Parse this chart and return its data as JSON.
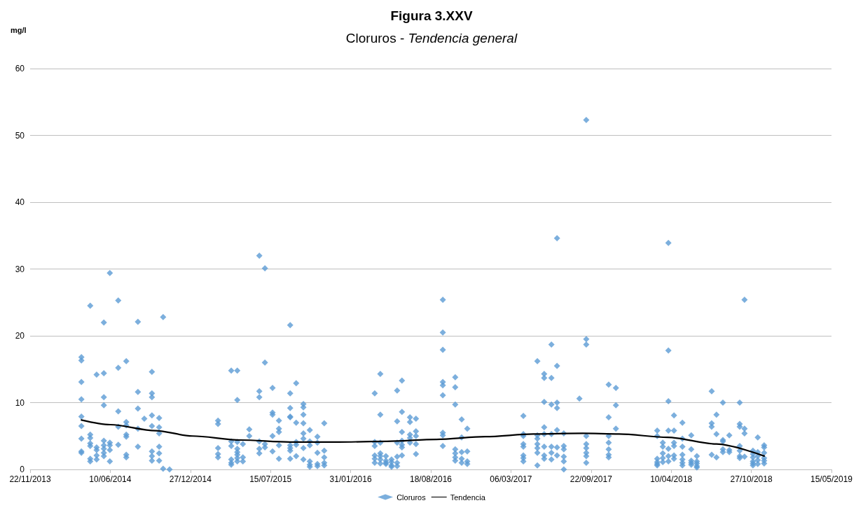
{
  "chart_data": {
    "type": "scatter",
    "title": "Figura 3.XXV",
    "subtitle": "Cloruros - Tendencia general",
    "ylabel": "mg/l",
    "xlim": [
      "2013-11-22",
      "2019-05-15"
    ],
    "xticks": [
      {
        "value": "2013-11-22",
        "label": "22/11/2013"
      },
      {
        "value": "2014-06-10",
        "label": "10/06/2014"
      },
      {
        "value": "2014-12-27",
        "label": "27/12/2014"
      },
      {
        "value": "2015-07-15",
        "label": "15/07/2015"
      },
      {
        "value": "2016-01-31",
        "label": "31/01/2016"
      },
      {
        "value": "2016-08-18",
        "label": "18/08/2016"
      },
      {
        "value": "2017-03-06",
        "label": "06/03/2017"
      },
      {
        "value": "2017-09-22",
        "label": "22/09/2017"
      },
      {
        "value": "2018-04-10",
        "label": "10/04/2018"
      },
      {
        "value": "2018-10-27",
        "label": "27/10/2018"
      },
      {
        "value": "2019-05-15",
        "label": "15/05/2019"
      }
    ],
    "ylim": [
      0,
      60
    ],
    "yticks": [
      0,
      10,
      20,
      30,
      40,
      50,
      60
    ],
    "grid": "y",
    "legend": "bottom",
    "series": [
      {
        "name": "Cloruros",
        "marker": "diamond",
        "color": "#5b9bd5",
        "x": [
          "2014-03-30",
          "2014-03-30",
          "2014-03-30",
          "2014-03-30",
          "2014-03-30",
          "2014-03-30",
          "2014-03-30",
          "2014-03-30",
          "2014-03-30",
          "2014-04-21",
          "2014-04-21",
          "2014-04-21",
          "2014-04-21",
          "2014-04-21",
          "2014-04-21",
          "2014-04-21",
          "2014-05-07",
          "2014-05-07",
          "2014-05-07",
          "2014-05-07",
          "2014-05-07",
          "2014-05-25",
          "2014-05-25",
          "2014-05-25",
          "2014-05-25",
          "2014-05-25",
          "2014-05-25",
          "2014-05-25",
          "2014-05-25",
          "2014-05-25",
          "2014-06-09",
          "2014-06-09",
          "2014-06-09",
          "2014-06-09",
          "2014-06-09",
          "2014-06-30",
          "2014-06-30",
          "2014-06-30",
          "2014-06-30",
          "2014-06-30",
          "2014-07-20",
          "2014-07-20",
          "2014-07-20",
          "2014-07-20",
          "2014-07-20",
          "2014-07-20",
          "2014-07-20",
          "2014-08-18",
          "2014-08-18",
          "2014-08-18",
          "2014-08-18",
          "2014-08-18",
          "2014-09-03",
          "2014-09-22",
          "2014-09-22",
          "2014-09-22",
          "2014-09-22",
          "2014-09-22",
          "2014-09-22",
          "2014-09-22",
          "2014-09-22",
          "2014-10-10",
          "2014-10-10",
          "2014-10-10",
          "2014-10-10",
          "2014-10-10",
          "2014-10-10",
          "2014-10-20",
          "2014-10-20",
          "2014-11-05",
          "2015-03-06",
          "2015-03-06",
          "2015-03-06",
          "2015-03-06",
          "2015-03-06",
          "2015-04-08",
          "2015-04-08",
          "2015-04-08",
          "2015-04-08",
          "2015-04-08",
          "2015-04-08",
          "2015-04-23",
          "2015-04-23",
          "2015-04-23",
          "2015-04-23",
          "2015-04-23",
          "2015-04-23",
          "2015-04-23",
          "2015-04-23",
          "2015-05-07",
          "2015-05-07",
          "2015-05-07",
          "2015-05-23",
          "2015-05-23",
          "2015-06-17",
          "2015-06-17",
          "2015-06-17",
          "2015-06-17",
          "2015-06-17",
          "2015-06-17",
          "2015-07-01",
          "2015-07-01",
          "2015-07-01",
          "2015-07-01",
          "2015-07-20",
          "2015-07-20",
          "2015-07-20",
          "2015-07-20",
          "2015-07-20",
          "2015-08-05",
          "2015-08-05",
          "2015-08-05",
          "2015-08-05",
          "2015-08-05",
          "2015-09-02",
          "2015-09-02",
          "2015-09-02",
          "2015-09-02",
          "2015-09-02",
          "2015-09-02",
          "2015-09-02",
          "2015-09-02",
          "2015-09-02",
          "2015-09-17",
          "2015-09-17",
          "2015-09-17",
          "2015-09-17",
          "2015-09-17",
          "2015-10-05",
          "2015-10-05",
          "2015-10-05",
          "2015-10-05",
          "2015-10-05",
          "2015-10-05",
          "2015-10-05",
          "2015-10-05",
          "2015-10-21",
          "2015-10-21",
          "2015-10-21",
          "2015-10-21",
          "2015-10-21",
          "2015-10-21",
          "2015-11-09",
          "2015-11-09",
          "2015-11-09",
          "2015-11-09",
          "2015-11-09",
          "2015-11-26",
          "2015-11-26",
          "2015-11-26",
          "2015-11-26",
          "2015-11-26",
          "2016-03-31",
          "2016-03-31",
          "2016-03-31",
          "2016-03-31",
          "2016-03-31",
          "2016-03-31",
          "2016-04-14",
          "2016-04-14",
          "2016-04-14",
          "2016-04-14",
          "2016-04-14",
          "2016-04-14",
          "2016-04-14",
          "2016-04-28",
          "2016-04-28",
          "2016-04-28",
          "2016-04-28",
          "2016-05-12",
          "2016-05-12",
          "2016-05-12",
          "2016-05-12",
          "2016-05-26",
          "2016-05-26",
          "2016-05-26",
          "2016-05-26",
          "2016-05-26",
          "2016-05-26",
          "2016-06-07",
          "2016-06-07",
          "2016-06-07",
          "2016-06-07",
          "2016-06-07",
          "2016-06-07",
          "2016-06-07",
          "2016-06-27",
          "2016-06-27",
          "2016-06-27",
          "2016-06-27",
          "2016-06-27",
          "2016-07-12",
          "2016-07-12",
          "2016-07-12",
          "2016-07-12",
          "2016-07-12",
          "2016-09-17",
          "2016-09-17",
          "2016-09-17",
          "2016-09-17",
          "2016-09-17",
          "2016-09-17",
          "2016-09-17",
          "2016-09-17",
          "2016-09-17",
          "2016-10-18",
          "2016-10-18",
          "2016-10-18",
          "2016-10-18",
          "2016-10-18",
          "2016-10-18",
          "2016-10-18",
          "2016-11-03",
          "2016-11-03",
          "2016-11-03",
          "2016-11-03",
          "2016-11-03",
          "2016-11-17",
          "2016-11-17",
          "2016-11-17",
          "2016-11-17",
          "2017-04-06",
          "2017-04-06",
          "2017-04-06",
          "2017-04-06",
          "2017-04-06",
          "2017-04-06",
          "2017-04-06",
          "2017-04-06",
          "2017-05-11",
          "2017-05-11",
          "2017-05-11",
          "2017-05-11",
          "2017-05-11",
          "2017-05-11",
          "2017-05-11",
          "2017-05-28",
          "2017-05-28",
          "2017-05-28",
          "2017-05-28",
          "2017-05-28",
          "2017-05-28",
          "2017-05-28",
          "2017-05-28",
          "2017-06-15",
          "2017-06-15",
          "2017-06-15",
          "2017-06-15",
          "2017-06-15",
          "2017-06-15",
          "2017-06-15",
          "2017-06-29",
          "2017-06-29",
          "2017-06-29",
          "2017-06-29",
          "2017-06-29",
          "2017-06-29",
          "2017-06-29",
          "2017-07-16",
          "2017-07-16",
          "2017-07-16",
          "2017-07-16",
          "2017-07-16",
          "2017-07-16",
          "2017-08-24",
          "2017-09-10",
          "2017-09-10",
          "2017-09-10",
          "2017-09-10",
          "2017-09-10",
          "2017-09-10",
          "2017-09-10",
          "2017-09-10",
          "2017-09-10",
          "2017-11-05",
          "2017-11-05",
          "2017-11-05",
          "2017-11-05",
          "2017-11-05",
          "2017-11-05",
          "2017-11-05",
          "2017-11-23",
          "2017-11-23",
          "2017-11-23",
          "2018-03-06",
          "2018-03-06",
          "2018-03-06",
          "2018-03-06",
          "2018-03-06",
          "2018-03-06",
          "2018-03-20",
          "2018-03-20",
          "2018-03-20",
          "2018-03-20",
          "2018-03-20",
          "2018-04-03",
          "2018-04-03",
          "2018-04-03",
          "2018-04-03",
          "2018-04-03",
          "2018-04-03",
          "2018-04-03",
          "2018-04-17",
          "2018-04-17",
          "2018-04-17",
          "2018-04-17",
          "2018-04-17",
          "2018-04-17",
          "2018-05-08",
          "2018-05-08",
          "2018-05-08",
          "2018-05-08",
          "2018-05-08",
          "2018-05-08",
          "2018-05-08",
          "2018-05-30",
          "2018-05-30",
          "2018-05-30",
          "2018-05-30",
          "2018-05-30",
          "2018-06-13",
          "2018-06-13",
          "2018-06-13",
          "2018-06-13",
          "2018-06-13",
          "2018-07-20",
          "2018-07-20",
          "2018-07-20",
          "2018-07-20",
          "2018-08-01",
          "2018-08-01",
          "2018-08-01",
          "2018-08-17",
          "2018-08-17",
          "2018-08-17",
          "2018-08-17",
          "2018-08-17",
          "2018-09-02",
          "2018-09-02",
          "2018-09-02",
          "2018-09-28",
          "2018-09-28",
          "2018-09-28",
          "2018-09-28",
          "2018-09-28",
          "2018-09-28",
          "2018-09-28",
          "2018-10-10",
          "2018-10-10",
          "2018-10-10",
          "2018-10-10",
          "2018-10-31",
          "2018-10-31",
          "2018-10-31",
          "2018-10-31",
          "2018-10-31",
          "2018-10-31",
          "2018-11-12",
          "2018-11-12",
          "2018-11-12",
          "2018-11-12",
          "2018-11-12",
          "2018-11-28",
          "2018-11-28",
          "2018-11-28",
          "2018-11-28",
          "2018-11-28",
          "2018-11-28"
        ],
        "values": [
          16.8,
          16.3,
          13.1,
          10.5,
          7.9,
          6.5,
          4.6,
          2.7,
          2.5,
          24.5,
          5.2,
          4.7,
          3.9,
          3.5,
          1.6,
          1.2,
          14.2,
          3.3,
          2.9,
          2.1,
          1.5,
          22.0,
          14.4,
          10.8,
          9.6,
          4.3,
          3.6,
          3.1,
          2.5,
          2.0,
          29.4,
          4.0,
          3.6,
          2.9,
          1.2,
          25.3,
          15.2,
          8.7,
          6.4,
          3.7,
          16.2,
          7.1,
          6.6,
          5.2,
          4.9,
          2.2,
          1.8,
          22.1,
          11.6,
          9.1,
          6.1,
          3.4,
          7.6,
          14.6,
          11.4,
          10.8,
          8.1,
          6.5,
          2.7,
          2.0,
          1.3,
          7.7,
          6.3,
          5.4,
          3.4,
          2.4,
          1.3,
          22.8,
          0.1,
          0.0,
          7.3,
          6.8,
          3.2,
          2.3,
          1.8,
          14.8,
          4.2,
          3.5,
          1.5,
          1.0,
          0.7,
          14.8,
          10.4,
          4.1,
          3.1,
          2.6,
          2.2,
          1.7,
          1.2,
          3.8,
          1.8,
          1.2,
          6.0,
          5.0,
          32.0,
          11.7,
          10.8,
          4.2,
          3.1,
          2.4,
          30.1,
          16.0,
          3.8,
          3.3,
          12.2,
          8.5,
          8.2,
          5.0,
          2.7,
          7.3,
          6.1,
          5.6,
          3.6,
          1.6,
          21.6,
          11.4,
          9.2,
          7.9,
          7.8,
          3.6,
          3.2,
          2.8,
          1.6,
          12.9,
          7.0,
          4.1,
          3.7,
          2.0,
          9.8,
          9.3,
          8.2,
          6.9,
          5.4,
          4.6,
          3.2,
          1.5,
          5.9,
          4.2,
          3.6,
          1.2,
          0.7,
          0.4,
          4.9,
          4.0,
          2.5,
          0.8,
          0.5,
          6.9,
          2.8,
          1.8,
          1.0,
          0.6,
          11.4,
          4.1,
          3.5,
          2.1,
          1.6,
          1.0,
          14.3,
          8.2,
          4.0,
          2.4,
          2.0,
          1.5,
          0.9,
          2.0,
          1.3,
          1.0,
          0.8,
          1.5,
          1.1,
          0.6,
          0.4,
          11.8,
          7.2,
          4.0,
          1.9,
          1.0,
          0.5,
          13.3,
          8.6,
          5.6,
          4.3,
          3.7,
          3.3,
          2.1,
          7.8,
          7.1,
          5.2,
          4.7,
          4.0,
          7.6,
          5.7,
          5.0,
          3.8,
          2.3,
          25.4,
          20.5,
          17.9,
          13.1,
          12.6,
          11.1,
          5.5,
          5.1,
          3.5,
          13.8,
          12.3,
          9.7,
          3.0,
          2.4,
          1.8,
          1.3,
          7.5,
          4.8,
          2.6,
          1.6,
          1.0,
          6.1,
          2.7,
          1.2,
          0.8,
          8.0,
          5.3,
          5.0,
          3.8,
          3.4,
          2.1,
          1.7,
          1.2,
          16.2,
          5.1,
          4.6,
          3.8,
          3.2,
          2.5,
          0.6,
          14.3,
          13.7,
          10.1,
          6.3,
          5.3,
          3.4,
          2.1,
          1.6,
          18.7,
          13.7,
          9.7,
          5.3,
          3.4,
          2.5,
          1.5,
          34.6,
          15.5,
          10.0,
          9.2,
          5.9,
          3.3,
          2.1,
          5.4,
          3.5,
          3.0,
          1.9,
          1.2,
          0.0,
          10.6,
          52.3,
          19.5,
          18.7,
          5.0,
          3.8,
          3.2,
          2.5,
          2.0,
          1.0,
          12.7,
          7.8,
          5.0,
          4.0,
          3.0,
          2.2,
          1.8,
          12.2,
          9.6,
          6.1,
          5.8,
          5.0,
          1.6,
          1.1,
          0.8,
          0.6,
          4.0,
          3.4,
          2.4,
          1.7,
          1.1,
          33.9,
          17.8,
          10.2,
          5.8,
          3.1,
          2.0,
          1.2,
          8.1,
          5.8,
          4.0,
          3.5,
          2.1,
          1.6,
          7.0,
          4.6,
          3.4,
          2.2,
          1.5,
          1.0,
          0.6,
          5.1,
          3.0,
          1.3,
          1.0,
          0.7,
          2.0,
          1.2,
          0.9,
          0.5,
          0.3,
          11.7,
          6.9,
          6.4,
          2.2,
          8.2,
          5.3,
          1.8,
          10.0,
          4.4,
          4.2,
          3.0,
          2.6,
          5.1,
          2.9,
          2.6,
          10.0,
          6.8,
          6.4,
          3.5,
          2.8,
          2.0,
          1.7,
          25.4,
          6.1,
          5.4,
          1.9,
          2.8,
          2.3,
          1.8,
          1.2,
          0.9,
          0.6,
          4.8,
          2.6,
          2.0,
          1.4,
          0.8,
          3.6,
          3.3,
          2.5,
          1.7,
          1.3,
          0.9
        ]
      },
      {
        "name": "Tendencia",
        "type": "line",
        "marker": "none",
        "color": "#000000",
        "x": [
          "2014-03-30",
          "2014-06-10",
          "2014-10-01",
          "2015-01-01",
          "2015-05-01",
          "2015-09-01",
          "2016-01-01",
          "2016-05-01",
          "2016-09-01",
          "2017-01-01",
          "2017-05-01",
          "2017-09-01",
          "2017-12-01",
          "2018-04-01",
          "2018-08-01",
          "2018-11-28"
        ],
        "values": [
          7.4,
          6.7,
          5.8,
          5.0,
          4.4,
          4.1,
          4.1,
          4.2,
          4.5,
          4.9,
          5.3,
          5.4,
          5.3,
          4.8,
          3.8,
          2.0
        ]
      }
    ]
  }
}
